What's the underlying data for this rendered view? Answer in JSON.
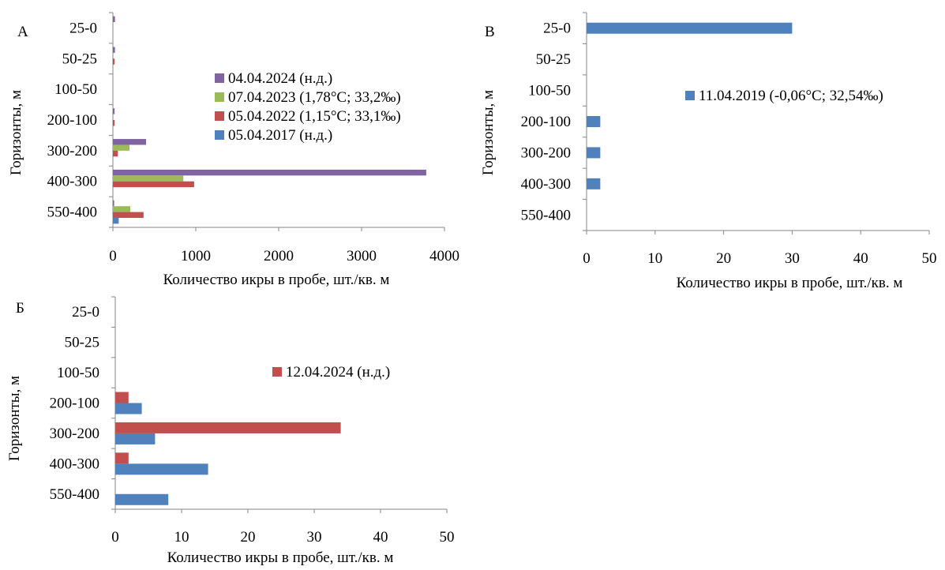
{
  "chart_data": [
    {
      "panel_label": "А",
      "type": "bar",
      "orientation": "horizontal",
      "categories": [
        "25-0",
        "50-25",
        "100-50",
        "200-100",
        "300-200",
        "400-300",
        "550-400"
      ],
      "xlabel": "Количество икры в пробе, шт./кв. м",
      "ylabel": "Горизонты, м",
      "xlim": [
        0,
        4000
      ],
      "xticks": [
        "0",
        "1000",
        "2000",
        "3000",
        "4000"
      ],
      "legend_position": "center-right",
      "series": [
        {
          "name": "04.04.2024 (н.д.)",
          "color": "#8064A2",
          "values": [
            25,
            25,
            0,
            20,
            400,
            3780,
            15
          ]
        },
        {
          "name": "07.04.2023 (1,78°С; 33,2‰)",
          "color": "#9BBB59",
          "values": [
            0,
            0,
            0,
            0,
            200,
            850,
            210
          ]
        },
        {
          "name": "05.04.2022 (1,15°С; 33,1‰)",
          "color": "#C0504D",
          "values": [
            0,
            20,
            0,
            20,
            60,
            980,
            370
          ]
        },
        {
          "name": "05.04.2017 (н.д.)",
          "color": "#4F81BD",
          "values": [
            0,
            0,
            0,
            0,
            0,
            0,
            70
          ]
        }
      ]
    },
    {
      "panel_label": "В",
      "type": "bar",
      "orientation": "horizontal",
      "categories": [
        "25-0",
        "50-25",
        "100-50",
        "200-100",
        "300-200",
        "400-300",
        "550-400"
      ],
      "xlabel": "Количество икры в пробе, шт./кв. м",
      "ylabel": "Горизонты, м",
      "xlim": [
        0,
        50
      ],
      "xticks": [
        "0",
        "10",
        "20",
        "30",
        "40",
        "50"
      ],
      "legend_position": "center-right",
      "series": [
        {
          "name": "11.04.2019 (-0,06°С; 32,54‰)",
          "color": "#4F81BD",
          "values": [
            30,
            0,
            0,
            2,
            2,
            2,
            0
          ]
        }
      ]
    },
    {
      "panel_label": "Б",
      "type": "bar",
      "orientation": "horizontal",
      "categories": [
        "25-0",
        "50-25",
        "100-50",
        "200-100",
        "300-200",
        "400-300",
        "550-400"
      ],
      "xlabel": "Количество икры в пробе, шт./кв. м",
      "ylabel": "Горизонты, м",
      "xlim": [
        0,
        50
      ],
      "xticks": [
        "0",
        "10",
        "20",
        "30",
        "40",
        "50"
      ],
      "legend_position": "center-right",
      "series": [
        {
          "name": "12.04.2024 (н.д.)",
          "color": "#C0504D",
          "values": [
            0,
            0,
            0,
            2,
            34,
            2,
            0
          ]
        },
        {
          "color": "#4F81BD",
          "values": [
            0,
            0,
            0,
            4,
            6,
            14,
            8
          ]
        }
      ]
    }
  ]
}
